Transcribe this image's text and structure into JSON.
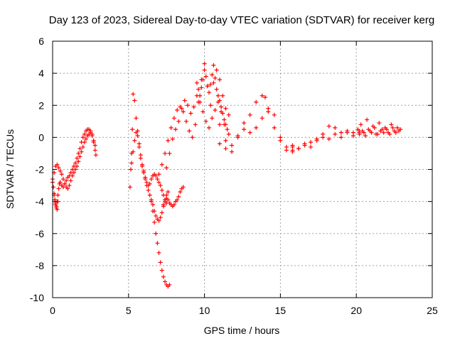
{
  "chart_data": {
    "type": "scatter",
    "title": "Day 123 of 2023, Sidereal Day-to-day VTEC variation (SDTVAR) for receiver kerg",
    "xlabel": "GPS time / hours",
    "ylabel": "SDTVAR / TECUs",
    "xlim": [
      0,
      25
    ],
    "ylim": [
      -10,
      6
    ],
    "xticks": [
      0,
      5,
      10,
      15,
      20,
      25
    ],
    "yticks": [
      -10,
      -8,
      -6,
      -4,
      -2,
      0,
      2,
      4,
      6
    ],
    "grid": true,
    "marker": "+",
    "color": "#ff0000",
    "series": [
      {
        "name": "SDTVAR",
        "x": [
          0.0,
          0.05,
          0.1,
          0.15,
          0.2,
          0.25,
          0.3,
          0.35,
          0.4,
          0.45,
          0.5,
          0.6,
          0.7,
          0.8,
          0.9,
          1.0,
          1.1,
          1.2,
          1.3,
          1.4,
          1.5,
          1.6,
          1.7,
          1.8,
          1.9,
          2.0,
          2.1,
          2.2,
          2.3,
          2.4,
          2.5,
          2.6,
          2.7,
          2.8,
          2.85,
          0.0,
          0.1,
          0.2,
          0.3,
          0.4,
          0.5,
          0.6,
          0.7,
          0.8,
          0.9,
          1.0,
          1.1,
          1.2,
          1.3,
          1.4,
          1.5,
          1.6,
          1.7,
          1.8,
          1.9,
          2.0,
          2.1,
          2.2,
          2.3,
          2.4,
          2.5,
          2.6,
          2.7,
          2.8,
          0.1,
          0.15,
          0.2,
          0.25,
          0.3,
          0.35,
          5.1,
          5.15,
          5.2,
          5.25,
          5.3,
          5.4,
          5.5,
          5.6,
          5.7,
          5.8,
          5.9,
          6.0,
          6.1,
          6.2,
          6.3,
          6.4,
          6.5,
          6.6,
          6.7,
          6.8,
          6.9,
          7.0,
          7.1,
          7.2,
          7.3,
          7.4,
          7.5,
          7.6,
          5.2,
          5.3,
          5.4,
          5.5,
          5.6,
          5.7,
          5.8,
          5.9,
          6.0,
          6.1,
          6.2,
          6.3,
          6.4,
          6.5,
          6.6,
          6.7,
          6.8,
          6.9,
          7.0,
          7.1,
          7.2,
          7.3,
          7.4,
          7.5,
          6.5,
          6.6,
          6.7,
          6.8,
          6.9,
          7.0,
          7.1,
          7.2,
          7.3,
          7.4,
          7.5,
          7.6,
          7.7,
          7.3,
          7.4,
          7.5,
          7.6,
          7.7,
          7.8,
          7.9,
          8.0,
          8.1,
          8.2,
          8.3,
          8.4,
          8.5,
          8.6,
          7.0,
          7.2,
          7.4,
          7.6,
          7.8,
          8.0,
          8.2,
          8.4,
          8.6,
          8.8,
          9.0,
          9.2,
          9.4,
          9.6,
          9.8,
          10.0,
          10.2,
          10.4,
          10.6,
          10.8,
          11.0,
          11.2,
          11.4,
          11.6,
          7.5,
          7.7,
          7.9,
          8.1,
          8.3,
          8.5,
          8.7,
          8.9,
          9.1,
          9.3,
          9.5,
          9.7,
          9.9,
          10.1,
          10.3,
          10.5,
          10.7,
          10.9,
          11.1,
          11.3,
          9.5,
          9.6,
          9.7,
          9.8,
          9.9,
          10.0,
          10.1,
          10.2,
          10.3,
          10.4,
          10.5,
          10.6,
          10.7,
          10.8,
          10.9,
          11.0,
          11.1,
          11.2,
          11.3,
          11.4,
          11.5,
          11.6,
          11.0,
          11.4,
          11.8,
          12.2,
          12.6,
          13.0,
          13.4,
          13.8,
          14.2,
          14.6,
          15.0,
          15.4,
          15.8,
          11.0,
          11.4,
          11.8,
          12.2,
          12.6,
          13.0,
          13.4,
          13.8,
          14.0,
          14.2,
          14.6,
          15.0,
          15.4,
          15.8,
          15.8,
          16.2,
          16.6,
          17.0,
          17.4,
          17.8,
          18.2,
          18.6,
          19.0,
          19.4,
          19.8,
          20.2,
          15.8,
          16.2,
          16.6,
          17.0,
          17.4,
          17.8,
          18.2,
          18.6,
          19.0,
          19.4,
          19.8,
          20.2,
          20.1,
          20.3,
          20.5,
          20.7,
          20.9,
          21.1,
          21.3,
          21.5,
          21.7,
          21.9,
          22.1,
          22.3,
          22.5,
          22.7,
          22.9,
          20.2,
          20.4,
          20.6,
          20.8,
          21.0,
          21.2,
          21.4,
          21.6,
          21.8,
          22.0,
          22.2,
          22.4,
          22.6,
          22.8
        ],
        "y": [
          -2.6,
          -3.1,
          -3.5,
          -3.9,
          -4.1,
          -4.3,
          -4.0,
          -3.6,
          -3.2,
          -2.9,
          -2.8,
          -3.0,
          -3.1,
          -2.9,
          -2.7,
          -2.5,
          -2.4,
          -2.2,
          -2.0,
          -1.8,
          -1.6,
          -1.3,
          -1.0,
          -0.7,
          -0.3,
          0.0,
          0.2,
          0.4,
          0.5,
          0.5,
          0.4,
          0.2,
          -0.2,
          -0.8,
          -1.1,
          -2.8,
          -2.2,
          -1.8,
          -1.7,
          -1.9,
          -2.1,
          -2.3,
          -2.6,
          -2.9,
          -3.1,
          -3.2,
          -3.0,
          -2.7,
          -2.4,
          -2.2,
          -2.0,
          -1.8,
          -1.5,
          -1.2,
          -0.9,
          -0.6,
          -0.3,
          -0.1,
          0.1,
          0.2,
          0.3,
          0.1,
          -0.3,
          -0.5,
          -3.6,
          -3.9,
          -4.2,
          -4.4,
          -4.5,
          -4.0,
          -3.1,
          -2.0,
          -1.0,
          0.5,
          2.7,
          2.3,
          1.2,
          0.4,
          -0.6,
          -1.3,
          -1.8,
          -2.2,
          -2.6,
          -3.0,
          -3.3,
          -3.6,
          -3.9,
          -4.2,
          -4.6,
          -4.9,
          -5.1,
          -5.2,
          -5.0,
          -4.7,
          -4.3,
          -3.9,
          -3.6,
          -3.4,
          -1.6,
          -0.9,
          -0.2,
          0.3,
          0.1,
          -0.4,
          -1.1,
          -1.7,
          -2.1,
          -2.5,
          -2.8,
          -3.0,
          -2.9,
          -2.6,
          -2.4,
          -2.3,
          -2.4,
          -2.6,
          -2.8,
          -3.0,
          -3.3,
          -3.6,
          -3.9,
          -4.1,
          -4.0,
          -4.6,
          -5.3,
          -6.0,
          -6.6,
          -7.2,
          -7.8,
          -8.3,
          -8.7,
          -9.0,
          -9.2,
          -9.3,
          -9.2,
          -4.2,
          -4.0,
          -3.8,
          -3.9,
          -4.1,
          -4.2,
          -4.3,
          -4.2,
          -4.0,
          -3.9,
          -3.7,
          -3.4,
          -3.2,
          -3.1,
          -2.3,
          -1.7,
          -1.0,
          -0.2,
          0.6,
          1.2,
          1.7,
          1.9,
          1.6,
          1.0,
          0.4,
          0.0,
          0.8,
          2.2,
          3.6,
          4.6,
          3.2,
          2.0,
          3.4,
          4.2,
          3.6,
          2.6,
          1.8,
          1.4,
          -1.9,
          -1.0,
          -0.1,
          0.5,
          1.0,
          1.8,
          2.3,
          2.0,
          1.5,
          1.9,
          2.6,
          2.2,
          1.6,
          1.0,
          0.6,
          1.2,
          1.7,
          2.2,
          1.6,
          0.8,
          3.4,
          3.0,
          2.6,
          3.1,
          3.6,
          4.2,
          3.8,
          3.2,
          2.8,
          3.3,
          3.9,
          4.5,
          3.7,
          3.0,
          2.6,
          2.3,
          1.9,
          1.5,
          1.1,
          0.8,
          0.5,
          0.2,
          0.8,
          -0.2,
          -0.9,
          0.1,
          0.9,
          0.3,
          0.6,
          1.2,
          1.8,
          1.4,
          0.0,
          -0.8,
          -0.6,
          -0.4,
          -0.7,
          -0.5,
          0.0,
          0.5,
          1.4,
          2.2,
          2.6,
          2.5,
          1.6,
          0.6,
          -0.2,
          -0.6,
          -0.8,
          -0.9,
          -0.7,
          -0.5,
          -0.3,
          -0.1,
          0.2,
          0.7,
          0.6,
          0.3,
          0.4,
          0.3,
          0.4,
          -0.5,
          -0.7,
          -0.4,
          -0.6,
          -0.2,
          0.0,
          -0.1,
          0.2,
          0.0,
          0.3,
          0.1,
          0.3,
          0.5,
          0.8,
          0.3,
          1.1,
          0.4,
          0.7,
          0.2,
          0.9,
          0.5,
          0.6,
          0.3,
          0.8,
          0.4,
          0.6,
          0.5,
          0.2,
          0.4,
          0.1,
          0.5,
          0.3,
          0.6,
          0.2,
          0.4,
          0.3,
          0.5,
          0.2,
          0.6,
          0.3,
          0.4
        ]
      }
    ]
  }
}
